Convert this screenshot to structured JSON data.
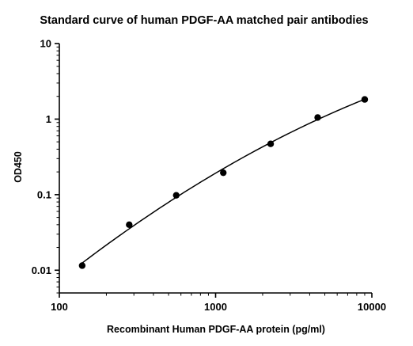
{
  "chart_data": {
    "type": "scatter",
    "title": "Standard curve of human PDGF-AA matched pair antibodies",
    "xlabel": "Recombinant Human PDGF-AA protein (pg/ml)",
    "ylabel": "OD450",
    "x_scale": "log",
    "y_scale": "log",
    "xlim": [
      100,
      10000
    ],
    "ylim": [
      0.005,
      10
    ],
    "x_ticks": [
      {
        "value": 100,
        "label": "100"
      },
      {
        "value": 1000,
        "label": "1000"
      },
      {
        "value": 10000,
        "label": "10000"
      }
    ],
    "y_ticks": [
      {
        "value": 0.01,
        "label": "0.01"
      },
      {
        "value": 0.1,
        "label": "0.1"
      },
      {
        "value": 1,
        "label": "1"
      },
      {
        "value": 10,
        "label": "10"
      }
    ],
    "grid": false,
    "legend": "none",
    "series": [
      {
        "x": [
          140,
          280,
          560,
          1120,
          2250,
          4500,
          9000
        ],
        "y": [
          0.0115,
          0.04,
          0.098,
          0.195,
          0.47,
          1.05,
          1.82
        ],
        "marker_color": "#000000",
        "fit_line": true
      }
    ]
  }
}
